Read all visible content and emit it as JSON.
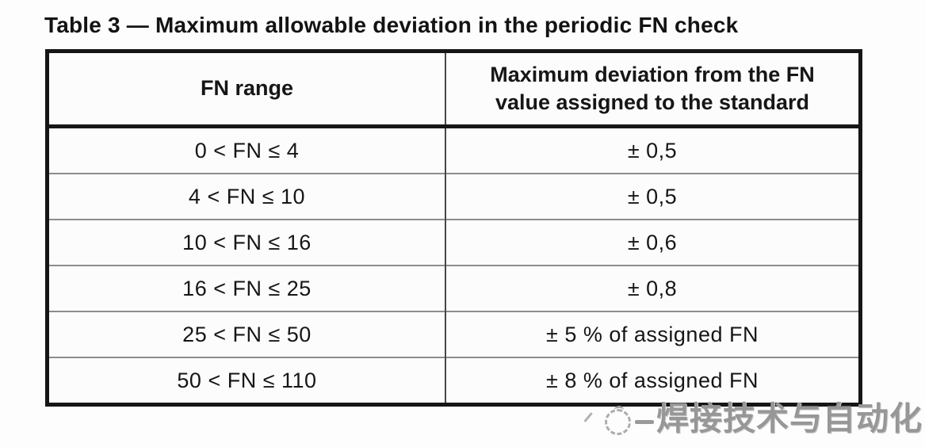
{
  "title": "Table 3 — Maximum allowable deviation in the periodic FN check",
  "table": {
    "headers": {
      "col1": "FN range",
      "col2": "Maximum deviation from the FN value assigned to the standard"
    },
    "rows": [
      {
        "range": "0 < FN ≤ 4",
        "deviation": "± 0,5"
      },
      {
        "range": "4 < FN ≤ 10",
        "deviation": "± 0,5"
      },
      {
        "range": "10 < FN ≤ 16",
        "deviation": "± 0,6"
      },
      {
        "range": "16 < FN ≤ 25",
        "deviation": "± 0,8"
      },
      {
        "range": "25 < FN ≤ 50",
        "deviation": "± 5 % of assigned FN"
      },
      {
        "range": "50 < FN ≤ 110",
        "deviation": "± 8 % of assigned FN"
      }
    ]
  },
  "watermark": {
    "text": "焊接技术与自动化",
    "icon": "dashed-circle-logo",
    "color": "#979797"
  },
  "colors": {
    "background": "#fdfdfd",
    "text": "#161616",
    "outer_border": "#161616",
    "column_divider": "#474747",
    "row_divider": "#8d8d8d"
  }
}
